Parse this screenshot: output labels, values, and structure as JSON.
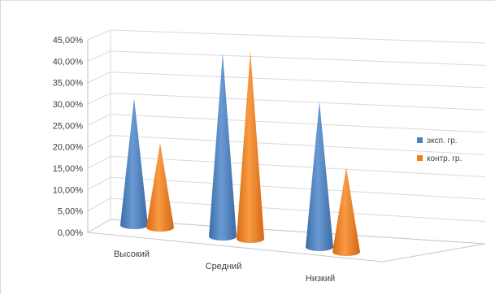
{
  "chart_data": {
    "type": "bar",
    "bar_shape": "cone",
    "projection": "3d",
    "categories": [
      "Высокий",
      "Средний",
      "Низкий"
    ],
    "y_ticks": [
      "0,00%",
      "5,00%",
      "10,00%",
      "15,00%",
      "20,00%",
      "25,00%",
      "30,00%",
      "35,00%",
      "40,00%",
      "45,00%"
    ],
    "ylim": [
      0,
      45
    ],
    "series": [
      {
        "name": "эксп. гр.",
        "color": "#4f81bd",
        "values": [
          27,
          39,
          31
        ]
      },
      {
        "name": "контр. гр.",
        "color": "#f07f1e",
        "values": [
          18,
          40,
          18
        ]
      }
    ],
    "grid": true,
    "legend_position": "right",
    "title": "",
    "xlabel": "",
    "ylabel": ""
  }
}
